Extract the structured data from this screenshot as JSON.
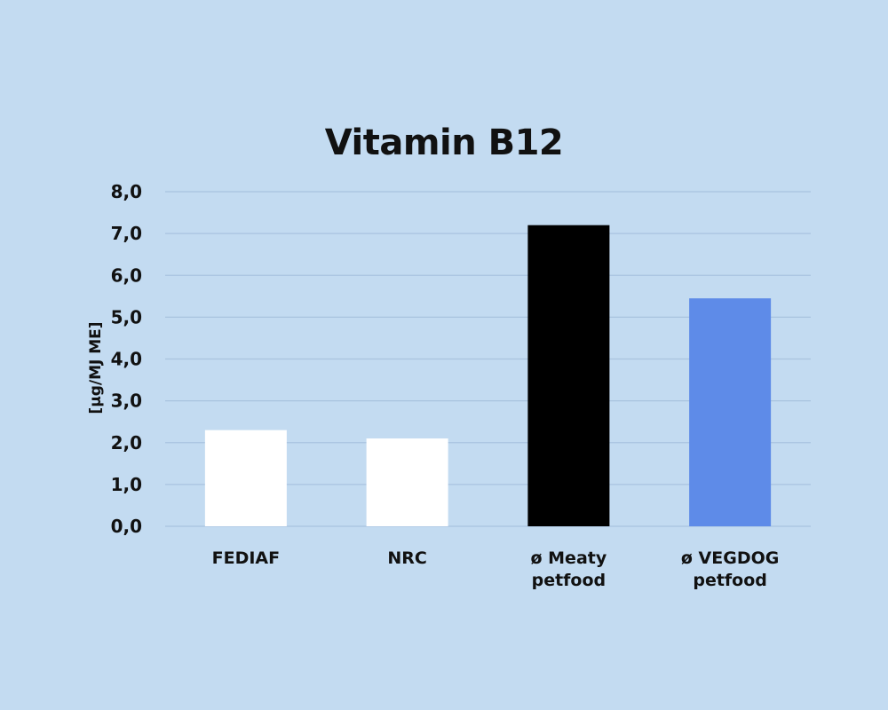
{
  "chart_data": {
    "type": "bar",
    "title": "Vitamin B12",
    "xlabel": "",
    "ylabel": "[µg/MJ ME]",
    "categories": [
      [
        "FEDIAF"
      ],
      [
        "NRC"
      ],
      [
        "ø Meaty",
        "petfood"
      ],
      [
        "ø VEGDOG",
        "petfood"
      ]
    ],
    "values": [
      2.3,
      2.1,
      7.2,
      5.45
    ],
    "bar_colors": [
      "#ffffff",
      "#ffffff",
      "#000000",
      "#5e8be8"
    ],
    "ylim": [
      0,
      8
    ],
    "yticks": [
      "0,0",
      "1,0",
      "2,0",
      "3,0",
      "4,0",
      "5,0",
      "6,0",
      "7,0",
      "8,0"
    ],
    "grid": true,
    "legend": "none"
  },
  "colors": {
    "background": "#c3dbf1",
    "gridline": "#a9c3df",
    "text": "#111111"
  }
}
